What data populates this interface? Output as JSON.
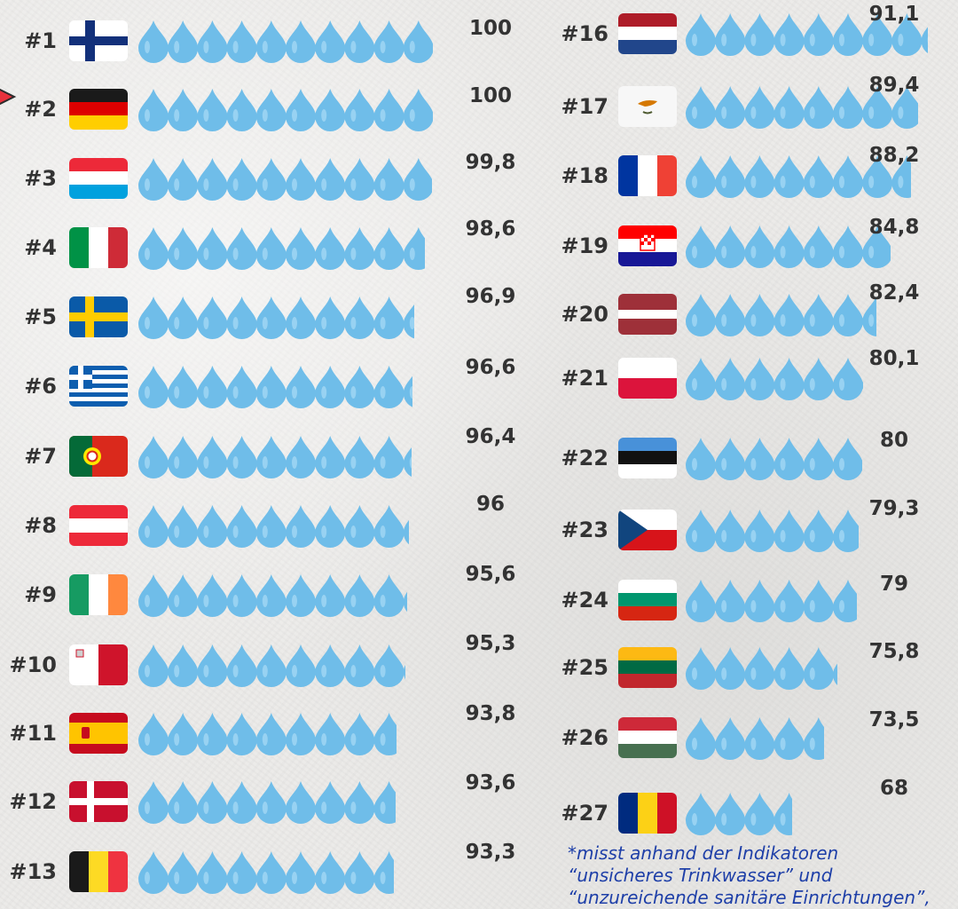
{
  "colors": {
    "drop": "#6fbde9",
    "drop_highlight": "#a9dbf5",
    "text": "#333333",
    "note": "#1e3fa8",
    "marker": "#e8313c"
  },
  "chart_data": {
    "type": "bar",
    "categories": [
      "#1",
      "#2",
      "#3",
      "#4",
      "#5",
      "#6",
      "#7",
      "#8",
      "#9",
      "#10",
      "#11",
      "#12",
      "#13",
      "#16",
      "#17",
      "#18",
      "#19",
      "#20",
      "#21",
      "#22",
      "#23",
      "#24",
      "#25",
      "#26",
      "#27"
    ],
    "series": [
      {
        "values": [
          100,
          100,
          99.8,
          98.6,
          96.9,
          96.6,
          96.4,
          96,
          95.6,
          95.3,
          93.8,
          93.6,
          93.3,
          91.1,
          89.4,
          88.2,
          84.8,
          82.4,
          80.1,
          80,
          79.3,
          79,
          75.8,
          73.5,
          68
        ]
      }
    ],
    "value_labels": [
      "100",
      "100",
      "99,8",
      "98,6",
      "96,9",
      "96,6",
      "96,4",
      "96",
      "95,6",
      "95,3",
      "93,8",
      "93,6",
      "93,3",
      "91,1",
      "89,4",
      "88,2",
      "84,8",
      "82,4",
      "80,1",
      "80",
      "79,3",
      "79",
      "75,8",
      "73,5",
      "68"
    ],
    "flags": [
      "finland",
      "germany",
      "luxembourg",
      "italy",
      "sweden",
      "greece",
      "portugal",
      "austria",
      "ireland",
      "malta",
      "spain",
      "denmark",
      "belgium",
      "netherlands",
      "cyprus",
      "france",
      "croatia",
      "latvia",
      "poland",
      "estonia",
      "czechia",
      "bulgaria",
      "lithuania",
      "hungary",
      "romania"
    ],
    "highlighted": "#2"
  },
  "footnote": {
    "lines": [
      "*misst anhand der Indikatoren",
      "“unsicheres Trinkwasser” und",
      "“unzureichende sanitäre Einrichtungen”,"
    ]
  }
}
